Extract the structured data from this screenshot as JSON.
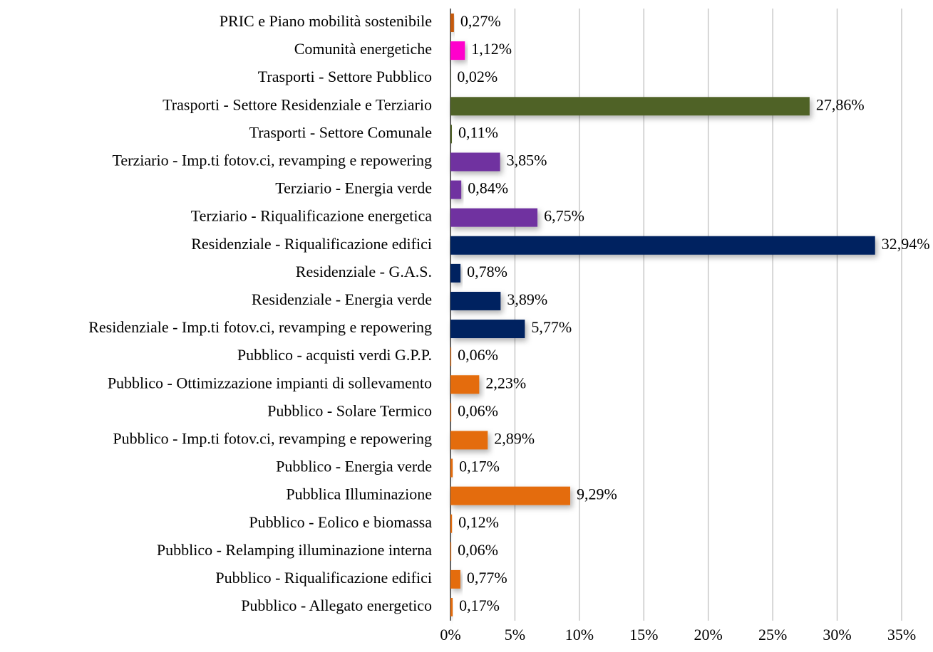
{
  "chart_data": {
    "type": "barh",
    "categories": [
      "PRIC e Piano mobilità sostenibile",
      "Comunità energetiche",
      "Trasporti - Settore Pubblico",
      "Trasporti - Settore Residenziale e Terziario",
      "Trasporti - Settore Comunale",
      "Terziario - Imp.ti fotov.ci, revamping e repowering",
      "Terziario - Energia verde",
      "Terziario - Riqualificazione energetica",
      "Residenziale - Riqualificazione edifici",
      "Residenziale - G.A.S.",
      "Residenziale - Energia verde",
      "Residenziale - Imp.ti fotov.ci, revamping e repowering",
      "Pubblico - acquisti verdi G.P.P.",
      "Pubblico - Ottimizzazione impianti di sollevamento",
      "Pubblico - Solare Termico",
      "Pubblico - Imp.ti fotov.ci, revamping e repowering",
      "Pubblico - Energia verde",
      "Pubblica Illuminazione",
      "Pubblico - Eolico e biomassa",
      "Pubblico - Relamping illuminazione interna",
      "Pubblico - Riqualificazione edifici",
      "Pubblico - Allegato energetico"
    ],
    "values": [
      0.27,
      1.12,
      0.02,
      27.86,
      0.11,
      3.85,
      0.84,
      6.75,
      32.94,
      0.78,
      3.89,
      5.77,
      0.06,
      2.23,
      0.06,
      2.89,
      0.17,
      9.29,
      0.12,
      0.06,
      0.77,
      0.17
    ],
    "value_labels": [
      "0,27%",
      "1,12%",
      "0,02%",
      "27,86%",
      "0,11%",
      "3,85%",
      "0,84%",
      "6,75%",
      "32,94%",
      "0,78%",
      "3,89%",
      "5,77%",
      "0,06%",
      "2,23%",
      "0,06%",
      "2,89%",
      "0,17%",
      "9,29%",
      "0,12%",
      "0,06%",
      "0,77%",
      "0,17%"
    ],
    "colors": [
      "#c55a11",
      "#ff00cc",
      "#4f6228",
      "#4f6228",
      "#4f6228",
      "#7030a0",
      "#7030a0",
      "#7030a0",
      "#002060",
      "#002060",
      "#002060",
      "#002060",
      "#e46c0a",
      "#e46c0a",
      "#e46c0a",
      "#e46c0a",
      "#e46c0a",
      "#e46c0a",
      "#e46c0a",
      "#e46c0a",
      "#e46c0a",
      "#e46c0a"
    ],
    "xlim": [
      0,
      35
    ],
    "xticks": [
      {
        "value": 0,
        "label": "0%"
      },
      {
        "value": 5,
        "label": "5%"
      },
      {
        "value": 10,
        "label": "10%"
      },
      {
        "value": 15,
        "label": "15%"
      },
      {
        "value": 20,
        "label": "20%"
      },
      {
        "value": 25,
        "label": "25%"
      },
      {
        "value": 30,
        "label": "30%"
      },
      {
        "value": 35,
        "label": "35%"
      }
    ],
    "grid": true
  }
}
